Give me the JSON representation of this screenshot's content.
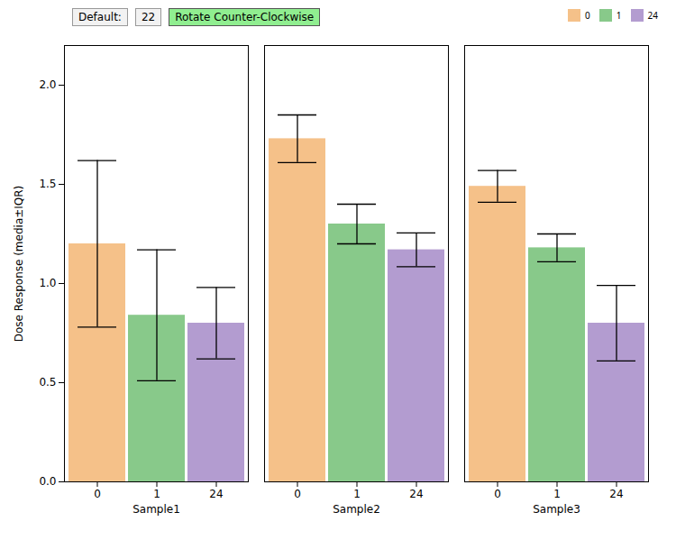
{
  "chart_data": {
    "type": "bar",
    "ylabel": "Dose Response (media±IQR)",
    "categories": [
      "Sample1",
      "Sample2",
      "Sample3"
    ],
    "series": [
      {
        "name": "0",
        "color": "#F5C189",
        "values": [
          1.2,
          1.73,
          1.49
        ],
        "errors": [
          0.42,
          0.12,
          0.08
        ]
      },
      {
        "name": "1",
        "color": "#88C98A",
        "values": [
          0.84,
          1.3,
          1.18
        ],
        "errors": [
          0.33,
          0.1,
          0.07
        ]
      },
      {
        "name": "24",
        "color": "#B39CD0",
        "values": [
          0.8,
          1.17,
          0.8
        ],
        "errors": [
          0.18,
          0.085,
          0.19
        ]
      }
    ],
    "ylim": [
      0,
      2.2
    ],
    "yticks": [
      {
        "value": 0,
        "label": "0.0"
      },
      0.5,
      {
        "value": 1,
        "label": "1.0"
      },
      1.5,
      {
        "value": 2,
        "label": "2.0"
      }
    ],
    "grid": false,
    "legend": "upper right",
    "annotations": [
      "Default:",
      "22",
      "Rotate Counter-Clockwise"
    ]
  }
}
